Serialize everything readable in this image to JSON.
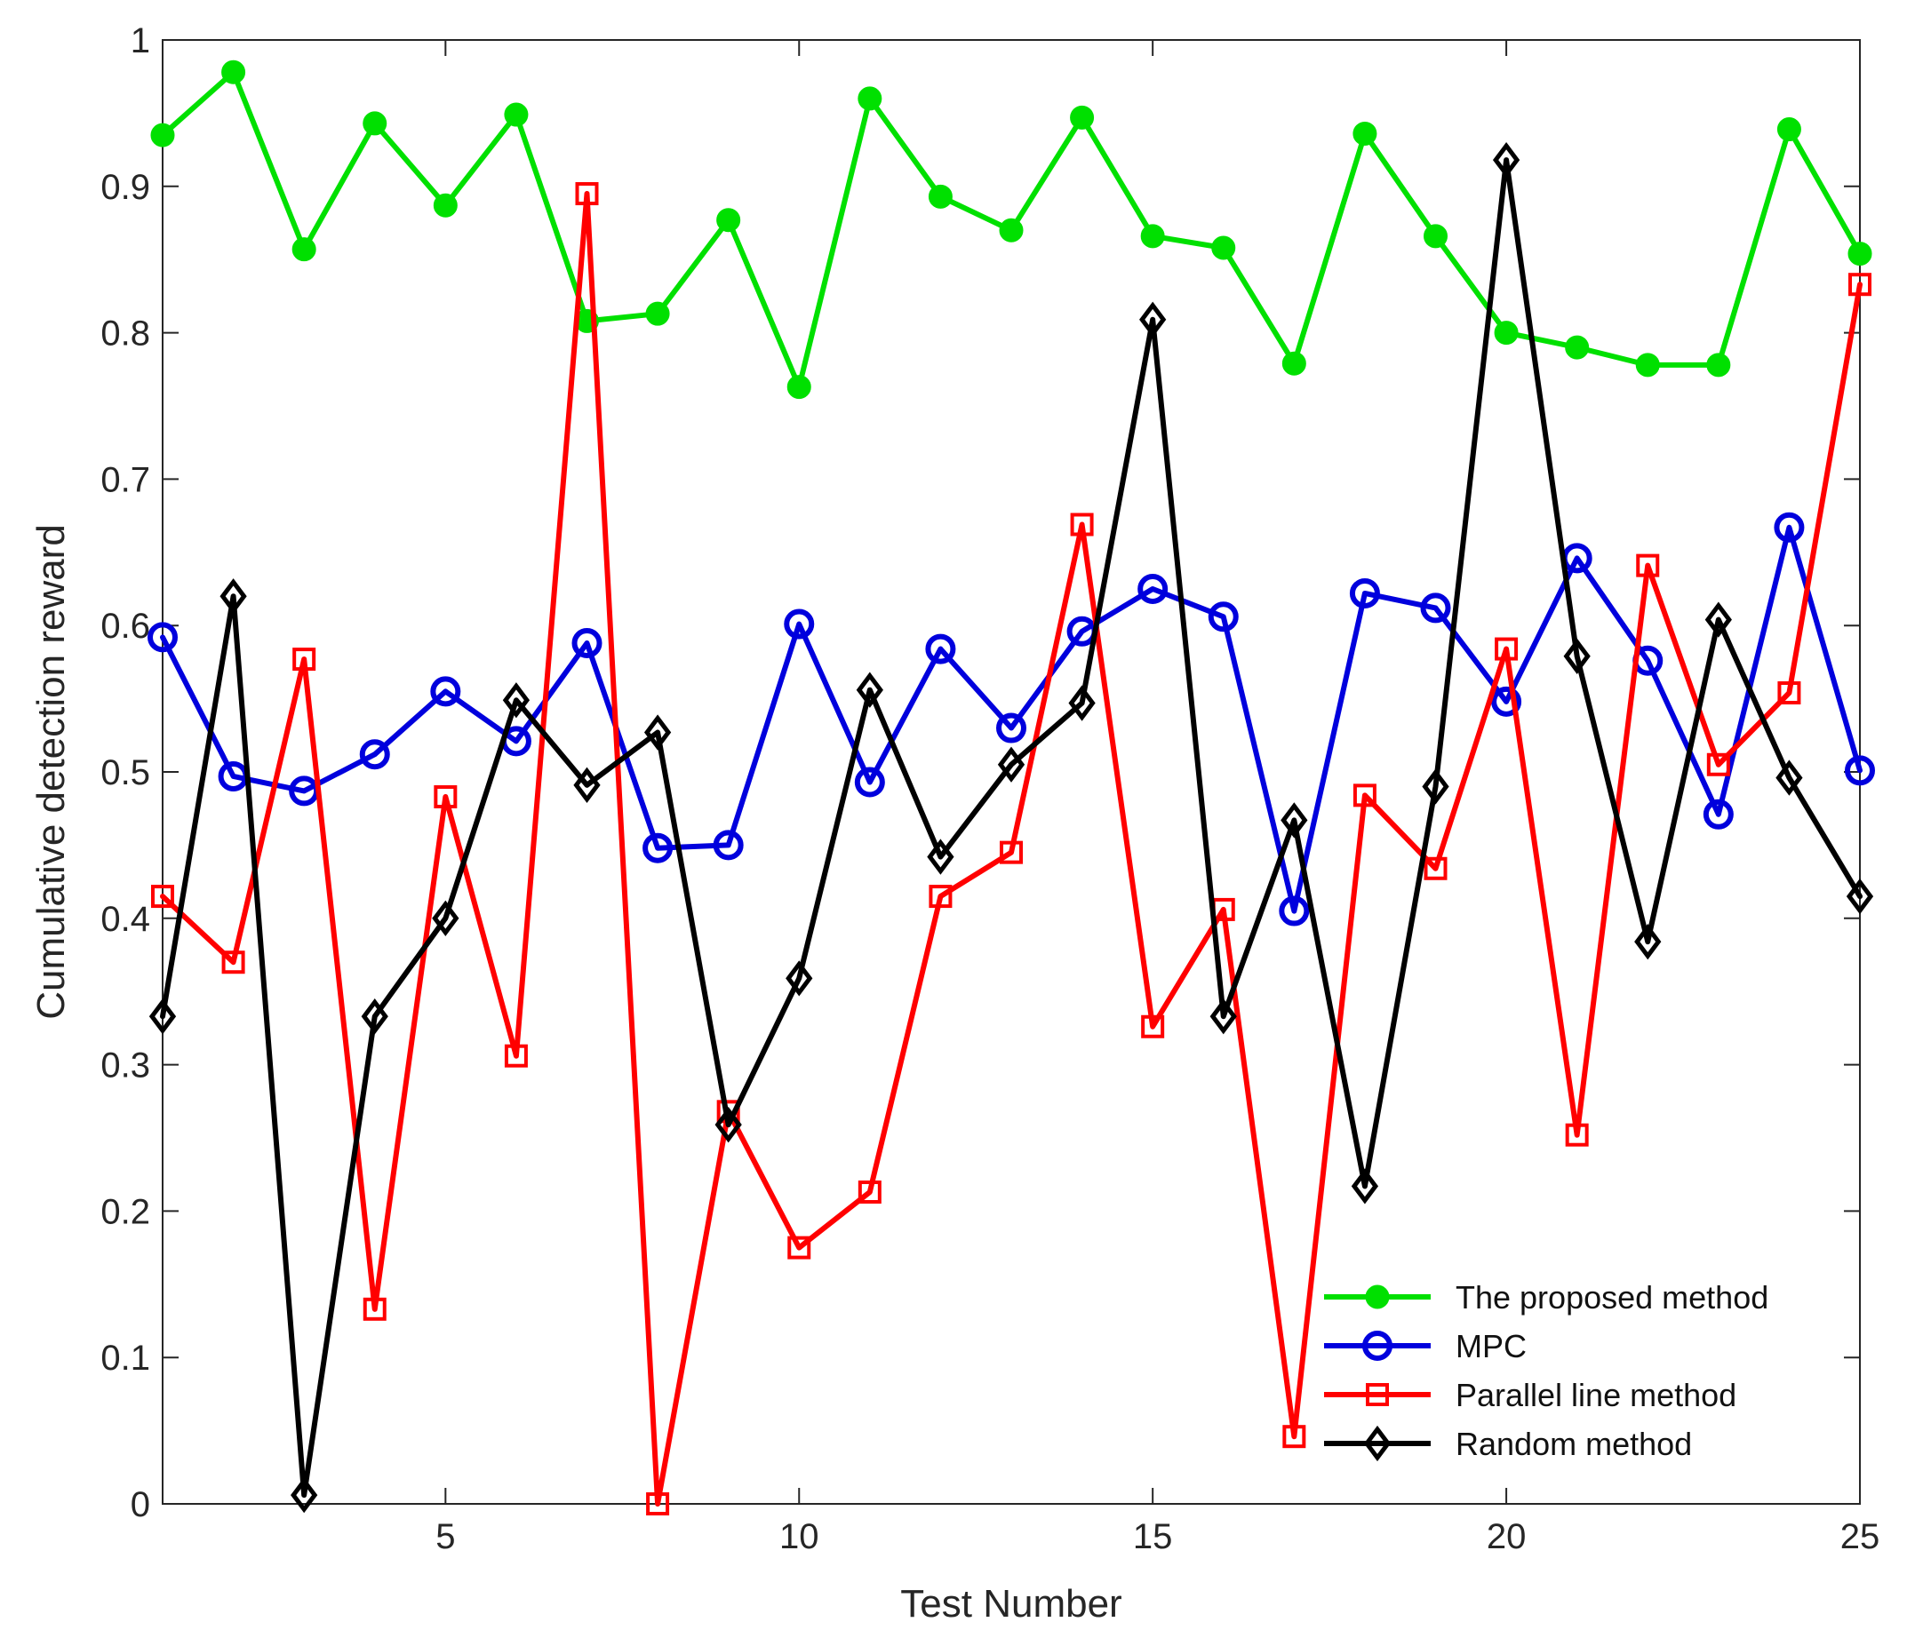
{
  "chart_data": {
    "type": "line",
    "title": "",
    "xlabel": "Test Number",
    "ylabel": "Cumulative detection reward",
    "xlim": [
      1,
      25
    ],
    "ylim": [
      0,
      1
    ],
    "x": [
      1,
      2,
      3,
      4,
      5,
      6,
      7,
      8,
      9,
      10,
      11,
      12,
      13,
      14,
      15,
      16,
      17,
      18,
      19,
      20,
      21,
      22,
      23,
      24,
      25
    ],
    "x_ticks": [
      5,
      10,
      15,
      20,
      25
    ],
    "x_tick_labels": [
      "5",
      "10",
      "15",
      "20",
      "25"
    ],
    "y_ticks": [
      0,
      0.1,
      0.2,
      0.3,
      0.4,
      0.5,
      0.6,
      0.7,
      0.8,
      0.9,
      1
    ],
    "y_tick_labels": [
      "0",
      "0.1",
      "0.2",
      "0.3",
      "0.4",
      "0.5",
      "0.6",
      "0.7",
      "0.8",
      "0.9",
      "1"
    ],
    "grid": false,
    "legend_position": "bottom-right",
    "series": [
      {
        "name": "The proposed method",
        "color": "#00e000",
        "marker": "filled-circle",
        "values": [
          0.935,
          0.978,
          0.857,
          0.943,
          0.887,
          0.949,
          0.808,
          0.813,
          0.877,
          0.763,
          0.96,
          0.893,
          0.87,
          0.947,
          0.866,
          0.858,
          0.779,
          0.936,
          0.866,
          0.8,
          0.79,
          0.778,
          0.778,
          0.939,
          0.854
        ]
      },
      {
        "name": "MPC",
        "color": "#0000dd",
        "marker": "open-circle",
        "values": [
          0.592,
          0.497,
          0.487,
          0.512,
          0.555,
          0.521,
          0.588,
          0.448,
          0.45,
          0.601,
          0.493,
          0.584,
          0.53,
          0.596,
          0.625,
          0.606,
          0.405,
          0.622,
          0.612,
          0.548,
          0.646,
          0.576,
          0.471,
          0.667,
          0.501
        ]
      },
      {
        "name": "Parallel line method",
        "color": "#ff0000",
        "marker": "open-square",
        "values": [
          0.415,
          0.37,
          0.577,
          0.133,
          0.483,
          0.306,
          0.895,
          0.0,
          0.268,
          0.175,
          0.213,
          0.415,
          0.445,
          0.669,
          0.326,
          0.406,
          0.046,
          0.484,
          0.434,
          0.584,
          0.252,
          0.641,
          0.505,
          0.554,
          0.833
        ]
      },
      {
        "name": "Random method",
        "color": "#000000",
        "marker": "open-diamond",
        "values": [
          0.333,
          0.62,
          0.006,
          0.333,
          0.4,
          0.549,
          0.491,
          0.527,
          0.259,
          0.359,
          0.556,
          0.442,
          0.505,
          0.547,
          0.809,
          0.333,
          0.467,
          0.217,
          0.49,
          0.918,
          0.579,
          0.384,
          0.604,
          0.496,
          0.415
        ]
      }
    ]
  }
}
